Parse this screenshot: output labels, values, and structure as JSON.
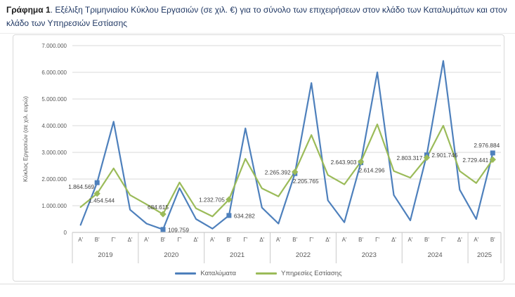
{
  "caption": {
    "bold": "Γράφημα 1",
    "rest": ". Εξέλιξη Τριμηνιαίου Κύκλου Εργασιών (σε χιλ. €) για το σύνολο των επιχειρήσεων στον κλάδο των Καταλυμάτων και στον κλάδο των Υπηρεσιών Εστίασης"
  },
  "chart_data": {
    "type": "line",
    "ylabel": "Κύκλος Εργασιών (σε χιλ. ευρώ)",
    "ylim": [
      0,
      7000000
    ],
    "grid": true,
    "legend_position": "bottom",
    "y_ticks": [
      "0",
      "1.000.000",
      "2.000.000",
      "3.000.000",
      "4.000.000",
      "5.000.000",
      "6.000.000",
      "7.000.000"
    ],
    "years": [
      {
        "label": "2019",
        "quarters": [
          "Α'",
          "Β'",
          "Γ'",
          "Δ'"
        ]
      },
      {
        "label": "2020",
        "quarters": [
          "Α'",
          "Β'",
          "Γ'",
          "Δ'"
        ]
      },
      {
        "label": "2021",
        "quarters": [
          "Α'",
          "Β'",
          "Γ'",
          "Δ'"
        ]
      },
      {
        "label": "2022",
        "quarters": [
          "Α'",
          "Β'",
          "Γ'",
          "Δ'"
        ]
      },
      {
        "label": "2023",
        "quarters": [
          "Α'",
          "Β'",
          "Γ'",
          "Δ'"
        ]
      },
      {
        "label": "2024",
        "quarters": [
          "Α'",
          "Β'",
          "Γ'",
          "Δ'"
        ]
      },
      {
        "label": "2025",
        "quarters": [
          "Α'",
          "Β'"
        ]
      }
    ],
    "marker_indices": [
      1,
      5,
      9,
      13,
      17,
      21,
      25
    ],
    "series": [
      {
        "name": "Καταλύματα",
        "color": "#4e80bc",
        "marker": "square",
        "values": [
          280000,
          1864569,
          4150000,
          850000,
          330000,
          109759,
          1660000,
          500000,
          140000,
          634282,
          3900000,
          930000,
          330000,
          2205765,
          5600000,
          1200000,
          380000,
          2614296,
          6000000,
          1400000,
          450000,
          2901746,
          6430000,
          1600000,
          500000,
          2976884
        ]
      },
      {
        "name": "Υπηρεσίες Εστίασης",
        "color": "#9bbb59",
        "marker": "diamond",
        "values": [
          950000,
          1454544,
          2400000,
          1400000,
          1050000,
          684615,
          1870000,
          900000,
          600000,
          1232705,
          2760000,
          1650000,
          1350000,
          2265392,
          3650000,
          2150000,
          1800000,
          2643903,
          4050000,
          2300000,
          2050000,
          2803317,
          4000000,
          2300000,
          1850000,
          2729441
        ]
      }
    ],
    "point_labels": [
      {
        "series": 0,
        "index": 1,
        "text": "1.864.569",
        "pos": "left-below"
      },
      {
        "series": 1,
        "index": 1,
        "text": "1.454.544",
        "pos": "below-left"
      },
      {
        "series": 1,
        "index": 5,
        "text": "684.615",
        "pos": "above-end"
      },
      {
        "series": 0,
        "index": 5,
        "text": "109.759",
        "pos": "right"
      },
      {
        "series": 1,
        "index": 9,
        "text": "1.232.705",
        "pos": "left"
      },
      {
        "series": 0,
        "index": 9,
        "text": "634.282",
        "pos": "right"
      },
      {
        "series": 1,
        "index": 13,
        "text": "2.265.392",
        "pos": "left"
      },
      {
        "series": 0,
        "index": 13,
        "text": "2.205.765",
        "pos": "below-start"
      },
      {
        "series": 1,
        "index": 17,
        "text": "2.643.903",
        "pos": "left"
      },
      {
        "series": 0,
        "index": 17,
        "text": "2.614.296",
        "pos": "below-start"
      },
      {
        "series": 1,
        "index": 21,
        "text": "2.803.317",
        "pos": "left"
      },
      {
        "series": 0,
        "index": 21,
        "text": "2.901.746",
        "pos": "right"
      },
      {
        "series": 0,
        "index": 25,
        "text": "2.976.884",
        "pos": "above-right"
      },
      {
        "series": 1,
        "index": 25,
        "text": "2.729.441",
        "pos": "left"
      }
    ],
    "colors": {
      "gridline": "#d9d9d9",
      "axis_line": "#bfbfbf",
      "separator": "#c9c9c9",
      "axis_text": "#595959",
      "data_label": "#404040"
    }
  }
}
